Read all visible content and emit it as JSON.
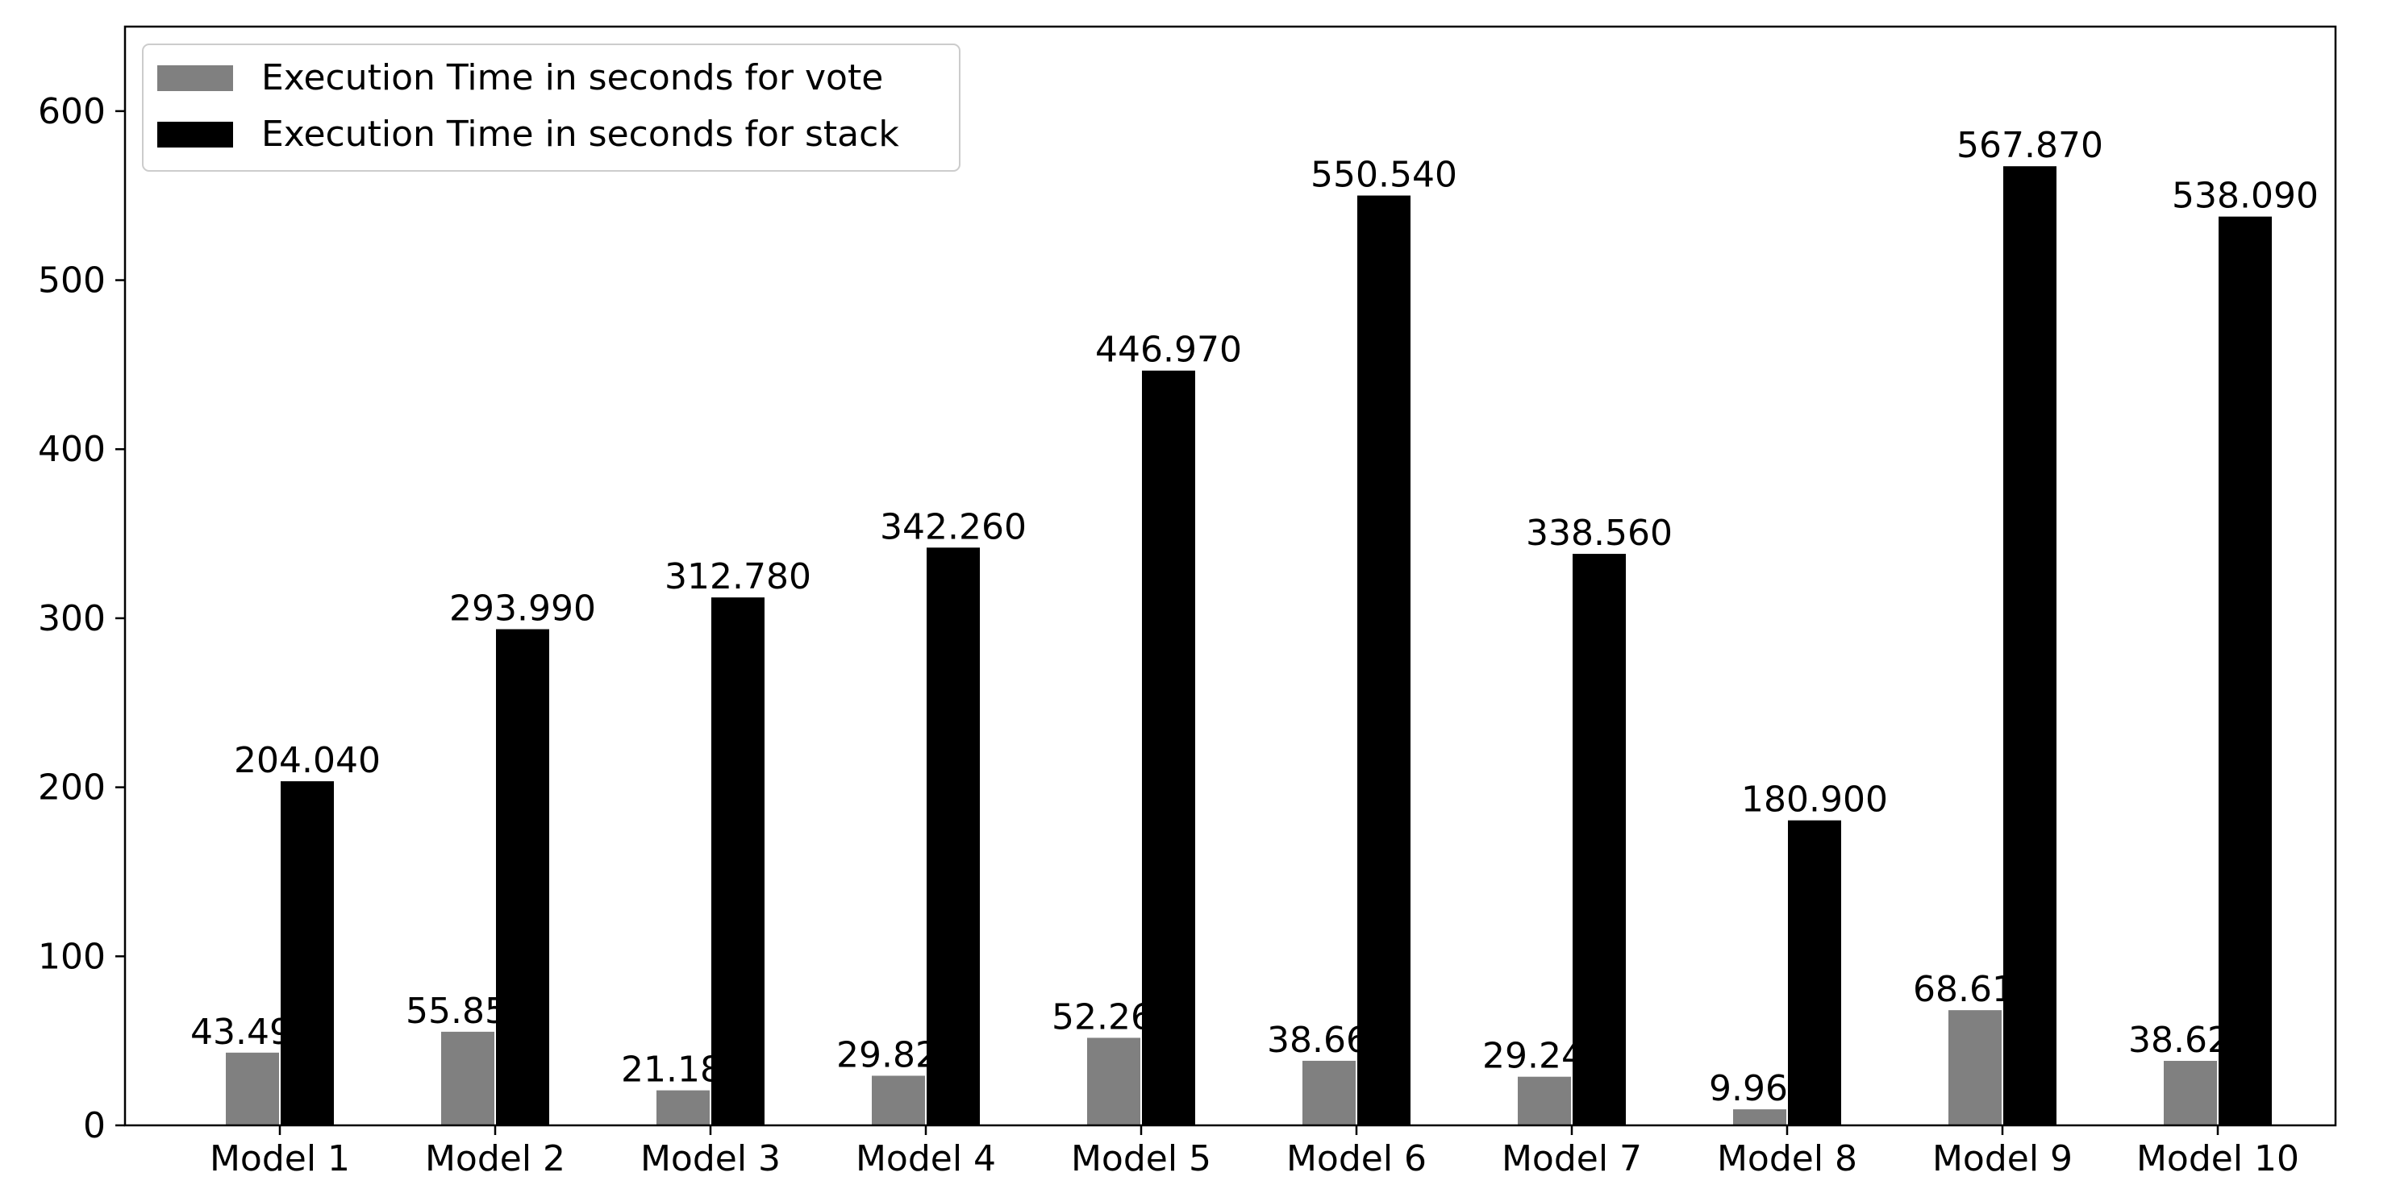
{
  "colors": {
    "vote": "#808080",
    "stack": "#000000",
    "frame": "#000000",
    "legend_border": "#cccccc",
    "bar_edge": "#ffffff"
  },
  "chart_data": {
    "type": "bar",
    "categories": [
      "Model 1",
      "Model 2",
      "Model 3",
      "Model 4",
      "Model 5",
      "Model 6",
      "Model 7",
      "Model 8",
      "Model 9",
      "Model 10"
    ],
    "series": [
      {
        "name": "Execution Time in seconds for vote",
        "color": "#808080",
        "values": [
          43.49,
          55.85,
          21.18,
          29.82,
          52.26,
          38.66,
          29.24,
          9.96,
          68.61,
          38.62
        ],
        "labels": [
          "43.490",
          "55.850",
          "21.180",
          "29.820",
          "52.260",
          "38.660",
          "29.240",
          "9.960",
          "68.610",
          "38.620"
        ]
      },
      {
        "name": "Execution Time in seconds for stack",
        "color": "#000000",
        "values": [
          204.04,
          293.99,
          312.78,
          342.26,
          446.97,
          550.54,
          338.56,
          180.9,
          567.87,
          538.09
        ],
        "labels": [
          "204.040",
          "293.990",
          "312.780",
          "342.260",
          "446.970",
          "550.540",
          "338.560",
          "180.900",
          "567.870",
          "538.090"
        ]
      }
    ],
    "yticks": [
      0,
      100,
      200,
      300,
      400,
      500,
      600
    ],
    "ylim": [
      0,
      650
    ],
    "title": "",
    "xlabel": "",
    "ylabel": "",
    "grid": false,
    "legend_position": "top-left"
  }
}
